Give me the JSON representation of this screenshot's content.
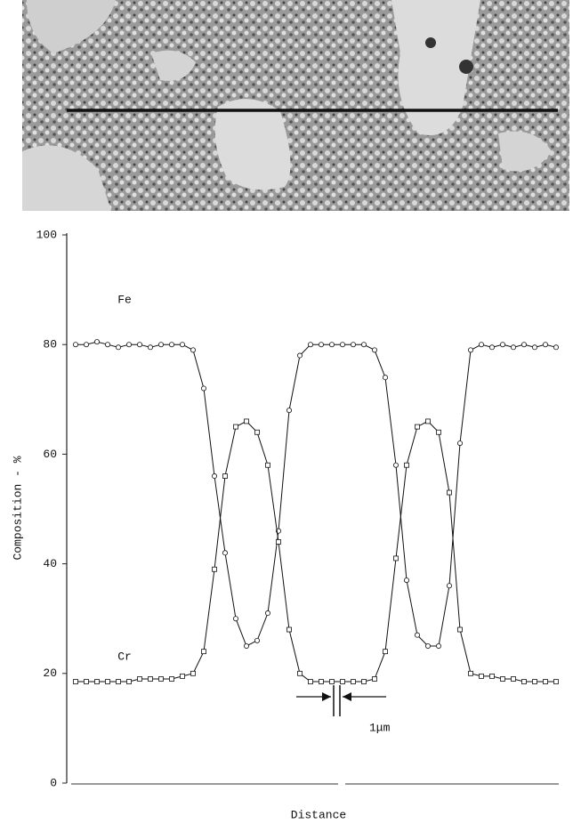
{
  "chart_data": {
    "type": "line",
    "ylabel": "Composition - %",
    "xlabel": "Distance",
    "annotations": [
      "1μm"
    ],
    "ylim": [
      0,
      100
    ],
    "yticks": [
      0,
      20,
      40,
      60,
      80,
      100
    ],
    "series": [
      {
        "name": "Fe",
        "color": "#111111",
        "marker": "circle",
        "values": [
          80,
          80,
          80.5,
          80,
          79.5,
          80,
          80,
          79.5,
          80,
          80,
          80,
          79,
          72,
          56,
          42,
          30,
          25,
          26,
          31,
          46,
          68,
          78,
          80,
          80,
          80,
          80,
          80,
          80,
          79,
          74,
          58,
          37,
          27,
          25,
          25,
          36,
          62,
          79,
          80,
          79.5,
          80,
          79.5,
          80,
          79.5,
          80,
          79.5
        ]
      },
      {
        "name": "Cr",
        "color": "#111111",
        "marker": "square",
        "values": [
          18.5,
          18.5,
          18.5,
          18.5,
          18.5,
          18.5,
          19,
          19,
          19,
          19,
          19.5,
          20,
          24,
          39,
          56,
          65,
          66,
          64,
          58,
          44,
          28,
          20,
          18.5,
          18.5,
          18.5,
          18.5,
          18.5,
          18.5,
          19,
          24,
          41,
          58,
          65,
          66,
          64,
          53,
          28,
          20,
          19.5,
          19.5,
          19,
          19,
          18.5,
          18.5,
          18.5,
          18.5
        ]
      }
    ]
  }
}
